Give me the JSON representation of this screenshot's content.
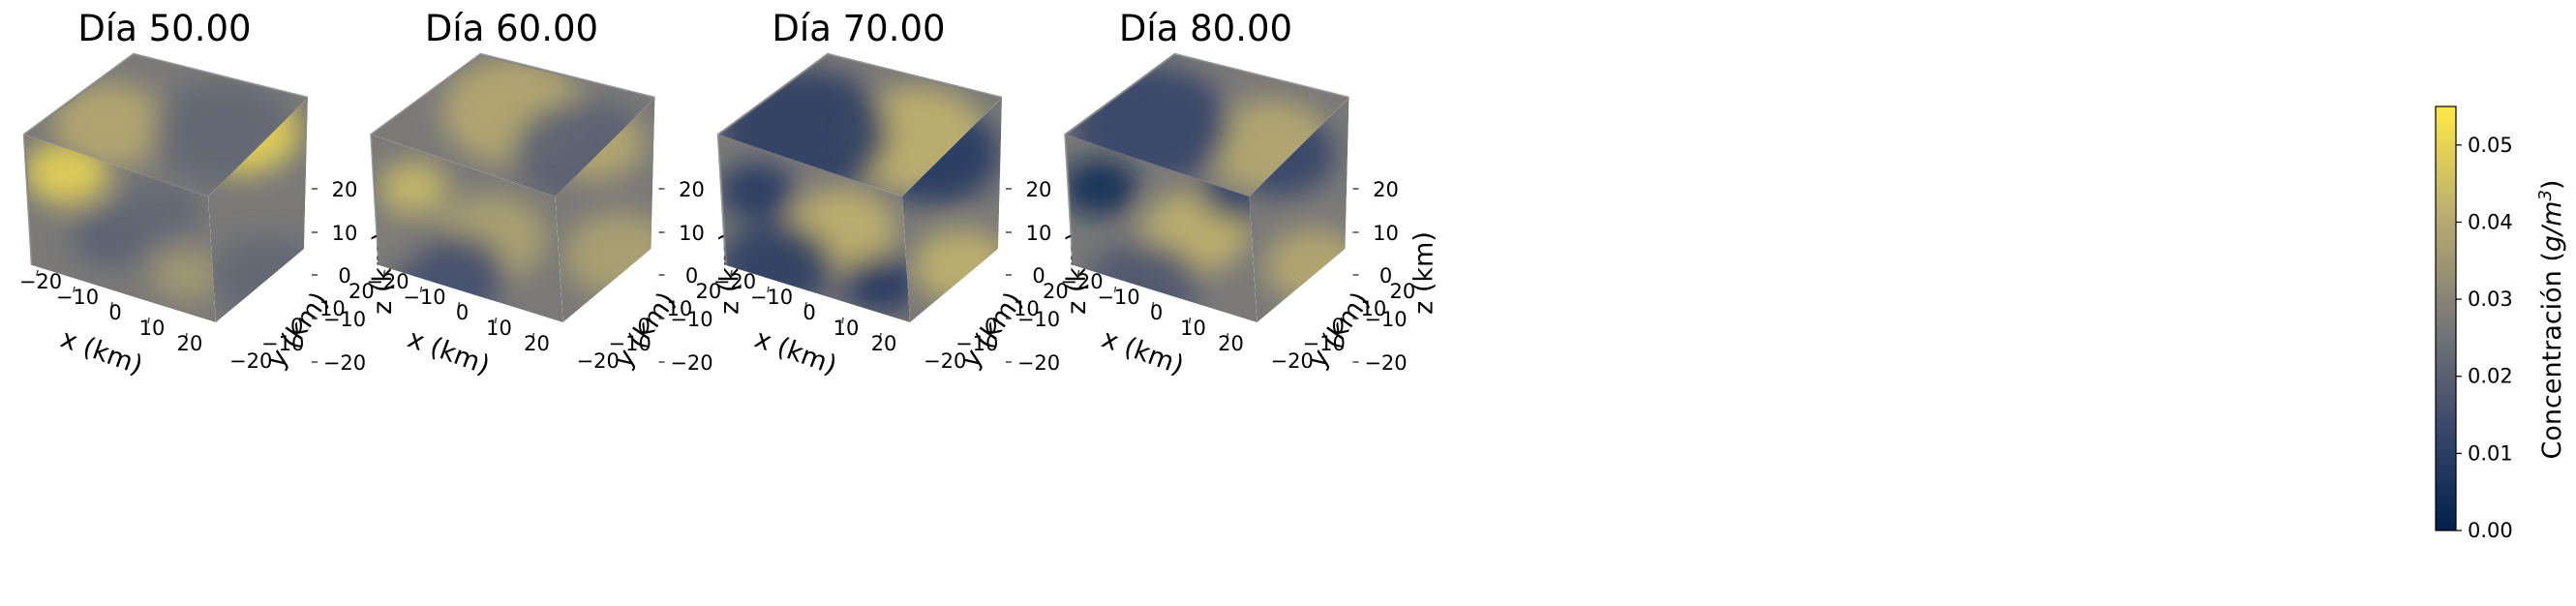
{
  "chart_data": {
    "type": "heatmap",
    "subtype": "3d-volume-slices",
    "panels": [
      {
        "title": "Día 50.00",
        "blobs": [
          {
            "face": "front",
            "u": 0.22,
            "v": 0.2,
            "r": 0.22,
            "value": 0.05
          },
          {
            "face": "front",
            "u": 0.45,
            "v": 0.55,
            "r": 0.2,
            "value": 0.02
          },
          {
            "face": "front",
            "u": 0.7,
            "v": 0.4,
            "r": 0.22,
            "value": 0.022
          },
          {
            "face": "front",
            "u": 0.85,
            "v": 0.75,
            "r": 0.18,
            "value": 0.036
          },
          {
            "face": "top",
            "u": 0.3,
            "v": 0.5,
            "r": 0.2,
            "value": 0.04
          },
          {
            "face": "top",
            "u": 0.7,
            "v": 0.55,
            "r": 0.25,
            "value": 0.022
          },
          {
            "face": "side",
            "u": 0.35,
            "v": 0.15,
            "r": 0.25,
            "value": 0.05
          },
          {
            "face": "side",
            "u": 0.6,
            "v": 0.8,
            "r": 0.25,
            "value": 0.022
          }
        ]
      },
      {
        "title": "Día 60.00",
        "blobs": [
          {
            "face": "front",
            "u": 0.22,
            "v": 0.28,
            "r": 0.18,
            "value": 0.044
          },
          {
            "face": "front",
            "u": 0.62,
            "v": 0.55,
            "r": 0.3,
            "value": 0.038
          },
          {
            "face": "front",
            "u": 0.4,
            "v": 0.75,
            "r": 0.3,
            "value": 0.015
          },
          {
            "face": "front",
            "u": 0.1,
            "v": 0.55,
            "r": 0.2,
            "value": 0.028
          },
          {
            "face": "top",
            "u": 0.5,
            "v": 0.4,
            "r": 0.25,
            "value": 0.04
          },
          {
            "face": "top",
            "u": 0.75,
            "v": 0.7,
            "r": 0.25,
            "value": 0.02
          },
          {
            "face": "side",
            "u": 0.4,
            "v": 0.2,
            "r": 0.22,
            "value": 0.04
          },
          {
            "face": "side",
            "u": 0.65,
            "v": 0.7,
            "r": 0.25,
            "value": 0.038
          }
        ]
      },
      {
        "title": "Día 70.00",
        "blobs": [
          {
            "face": "front",
            "u": 0.2,
            "v": 0.3,
            "r": 0.2,
            "value": 0.008
          },
          {
            "face": "front",
            "u": 0.65,
            "v": 0.5,
            "r": 0.28,
            "value": 0.042
          },
          {
            "face": "front",
            "u": 0.3,
            "v": 0.7,
            "r": 0.3,
            "value": 0.01
          },
          {
            "face": "front",
            "u": 0.85,
            "v": 0.8,
            "r": 0.2,
            "value": 0.008
          },
          {
            "face": "top",
            "u": 0.7,
            "v": 0.6,
            "r": 0.25,
            "value": 0.042
          },
          {
            "face": "top",
            "u": 0.3,
            "v": 0.55,
            "r": 0.3,
            "value": 0.01
          },
          {
            "face": "side",
            "u": 0.3,
            "v": 0.25,
            "r": 0.3,
            "value": 0.008
          },
          {
            "face": "side",
            "u": 0.6,
            "v": 0.75,
            "r": 0.22,
            "value": 0.042
          }
        ]
      },
      {
        "title": "Día 80.00",
        "blobs": [
          {
            "face": "front",
            "u": 0.18,
            "v": 0.28,
            "r": 0.2,
            "value": 0.004
          },
          {
            "face": "front",
            "u": 0.68,
            "v": 0.52,
            "r": 0.28,
            "value": 0.042
          },
          {
            "face": "front",
            "u": 0.4,
            "v": 0.8,
            "r": 0.3,
            "value": 0.018
          },
          {
            "face": "front",
            "u": 0.9,
            "v": 0.3,
            "r": 0.2,
            "value": 0.012
          },
          {
            "face": "top",
            "u": 0.72,
            "v": 0.65,
            "r": 0.22,
            "value": 0.04
          },
          {
            "face": "top",
            "u": 0.3,
            "v": 0.5,
            "r": 0.28,
            "value": 0.012
          },
          {
            "face": "side",
            "u": 0.3,
            "v": 0.25,
            "r": 0.25,
            "value": 0.012
          },
          {
            "face": "side",
            "u": 0.65,
            "v": 0.75,
            "r": 0.22,
            "value": 0.04
          }
        ]
      }
    ],
    "axes": {
      "xlabel": "x (km)",
      "ylabel": "y (km)",
      "zlabel": "z (km)",
      "xticks": [
        "−20",
        "−10",
        "0",
        "10",
        "20"
      ],
      "yticks": [
        "−20",
        "−10",
        "0",
        "10",
        "20"
      ],
      "zticks": [
        "20",
        "10",
        "0",
        "−10",
        "−20"
      ],
      "xlim": [
        -25,
        25
      ],
      "ylim": [
        -25,
        25
      ],
      "zlim": [
        -25,
        25
      ]
    },
    "colorbar": {
      "label_prefix": "Concentración (",
      "label_unit": "g/m",
      "label_exp": "3",
      "label_suffix": ")",
      "ticks": [
        "0.00",
        "0.01",
        "0.02",
        "0.03",
        "0.04",
        "0.05"
      ],
      "tick_values": [
        0,
        0.01,
        0.02,
        0.03,
        0.04,
        0.05
      ],
      "range": [
        0,
        0.055
      ],
      "colormap": [
        "#00204c",
        "#3b496c",
        "#7c7b78",
        "#bcaf6f",
        "#ffe945"
      ]
    }
  }
}
